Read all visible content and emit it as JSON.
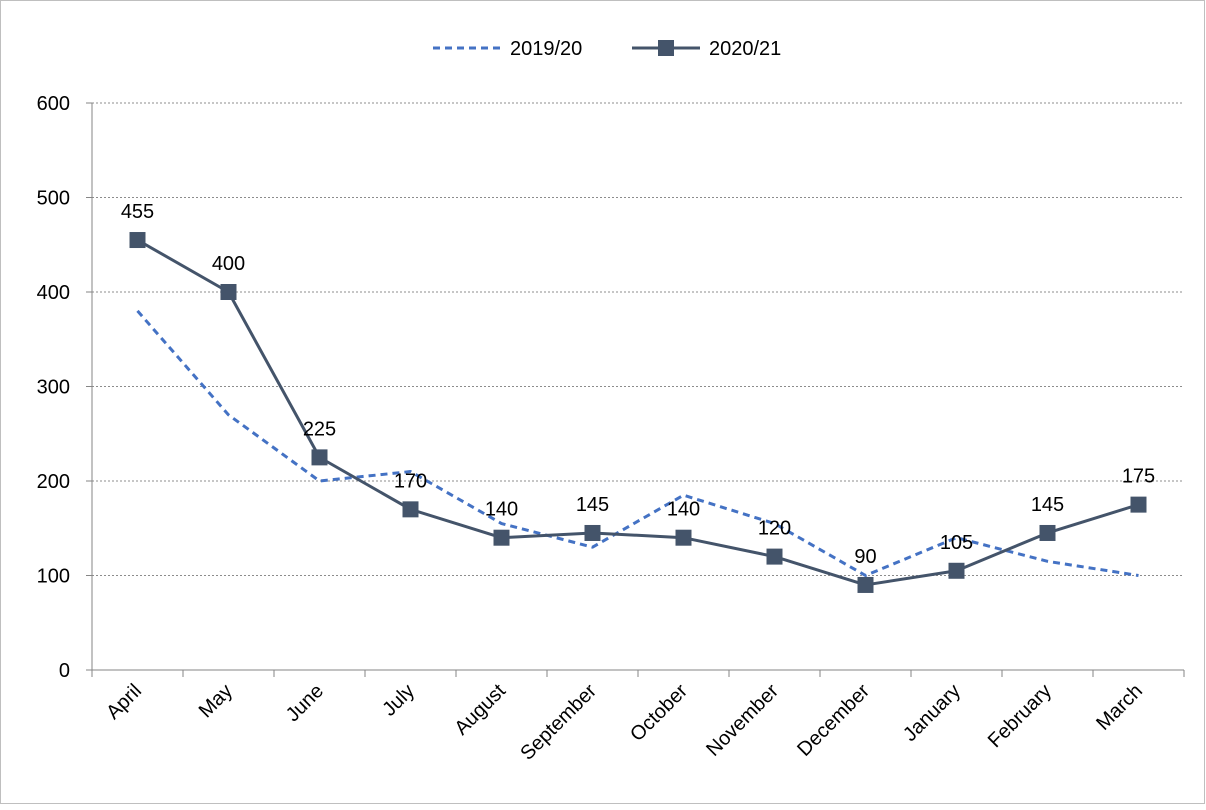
{
  "chart_data": {
    "type": "line",
    "categories": [
      "April",
      "May",
      "June",
      "July",
      "August",
      "September",
      "October",
      "November",
      "December",
      "January",
      "February",
      "March"
    ],
    "series": [
      {
        "name": "2019/20",
        "values": [
          380,
          270,
          200,
          210,
          155,
          130,
          185,
          155,
          100,
          140,
          115,
          100
        ],
        "color": "#4472c4",
        "line_style": "dashed",
        "marker": "none",
        "data_labels": false
      },
      {
        "name": "2020/21",
        "values": [
          455,
          400,
          225,
          170,
          140,
          145,
          140,
          120,
          90,
          105,
          145,
          175
        ],
        "color": "#44546a",
        "line_style": "solid",
        "marker": "square",
        "data_labels": true
      }
    ],
    "ylim": [
      0,
      600
    ],
    "yticks": [
      0,
      100,
      200,
      300,
      400,
      500,
      600
    ],
    "grid": "horizontal-dashed",
    "legend_position": "top"
  }
}
